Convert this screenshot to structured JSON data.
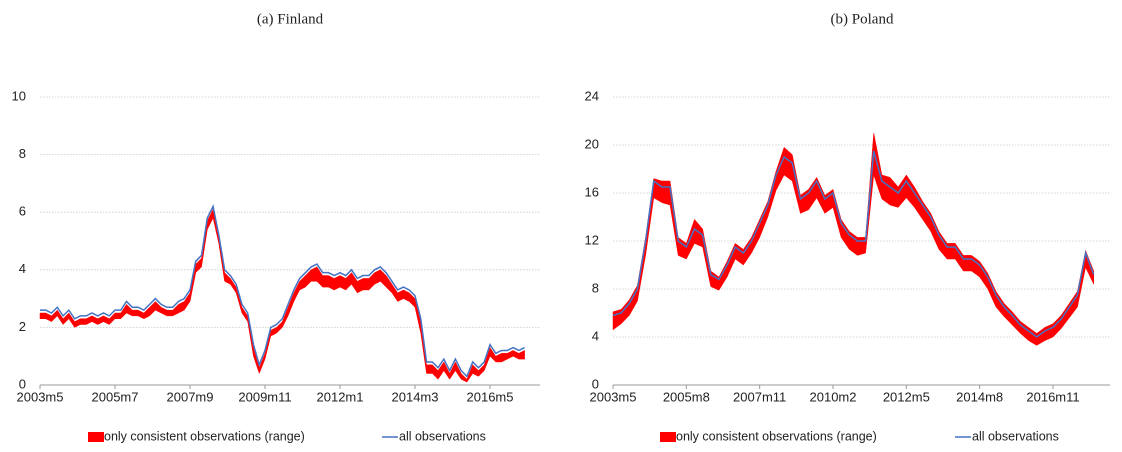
{
  "chart_data": [
    {
      "type": "line",
      "title": "(a) Finland",
      "categories": [
        "2003m5",
        null,
        null,
        null,
        null,
        null,
        null,
        null,
        null,
        null,
        null,
        null,
        null,
        "2005m7",
        null,
        null,
        null,
        null,
        null,
        null,
        null,
        null,
        null,
        null,
        null,
        null,
        "2007m9",
        null,
        null,
        null,
        null,
        null,
        null,
        null,
        null,
        null,
        null,
        null,
        null,
        "2009m11",
        null,
        null,
        null,
        null,
        null,
        null,
        null,
        null,
        null,
        null,
        null,
        null,
        "2012m1",
        null,
        null,
        null,
        null,
        null,
        null,
        null,
        null,
        null,
        null,
        null,
        null,
        "2014m3",
        null,
        null,
        null,
        null,
        null,
        null,
        null,
        null,
        null,
        null,
        null,
        null,
        "2016m5",
        null,
        null,
        null,
        null,
        null,
        null
      ],
      "series": [
        {
          "name": "only consistent observations (range)",
          "color": "#ff0000",
          "high": [
            2.5,
            2.5,
            2.4,
            2.6,
            2.3,
            2.5,
            2.2,
            2.3,
            2.3,
            2.4,
            2.3,
            2.4,
            2.3,
            2.5,
            2.5,
            2.8,
            2.6,
            2.6,
            2.5,
            2.7,
            2.9,
            2.7,
            2.6,
            2.6,
            2.8,
            2.9,
            3.2,
            4.2,
            4.4,
            5.7,
            6.1,
            5.1,
            3.9,
            3.7,
            3.4,
            2.7,
            2.4,
            1.3,
            0.6,
            1.1,
            1.9,
            2.0,
            2.2,
            2.7,
            3.2,
            3.6,
            3.8,
            4.0,
            4.1,
            3.8,
            3.8,
            3.7,
            3.8,
            3.7,
            3.9,
            3.6,
            3.7,
            3.7,
            3.9,
            4.0,
            3.8,
            3.5,
            3.2,
            3.3,
            3.2,
            3.0,
            2.2,
            0.7,
            0.7,
            0.5,
            0.8,
            0.4,
            0.8,
            0.4,
            0.2,
            0.7,
            0.5,
            0.7,
            1.3,
            1.0,
            1.1,
            1.1,
            1.2,
            1.1,
            1.2
          ],
          "low": [
            2.3,
            2.3,
            2.2,
            2.4,
            2.1,
            2.3,
            2.0,
            2.1,
            2.1,
            2.2,
            2.1,
            2.2,
            2.1,
            2.3,
            2.3,
            2.5,
            2.4,
            2.4,
            2.3,
            2.4,
            2.6,
            2.5,
            2.4,
            2.4,
            2.5,
            2.6,
            2.9,
            3.9,
            4.1,
            5.4,
            5.8,
            4.9,
            3.6,
            3.5,
            3.2,
            2.5,
            2.2,
            1.0,
            0.4,
            0.9,
            1.7,
            1.8,
            2.0,
            2.4,
            2.9,
            3.3,
            3.4,
            3.6,
            3.6,
            3.4,
            3.4,
            3.3,
            3.4,
            3.3,
            3.5,
            3.2,
            3.3,
            3.3,
            3.5,
            3.6,
            3.4,
            3.2,
            2.9,
            3.0,
            2.9,
            2.7,
            1.8,
            0.4,
            0.4,
            0.2,
            0.5,
            0.2,
            0.5,
            0.2,
            0.1,
            0.4,
            0.3,
            0.5,
            1.0,
            0.8,
            0.8,
            0.9,
            1.0,
            0.9,
            0.9
          ]
        },
        {
          "name": "all observations",
          "color": "#4472c4",
          "values": [
            2.6,
            2.6,
            2.5,
            2.7,
            2.4,
            2.6,
            2.3,
            2.4,
            2.4,
            2.5,
            2.4,
            2.5,
            2.4,
            2.6,
            2.6,
            2.9,
            2.7,
            2.7,
            2.6,
            2.8,
            3.0,
            2.8,
            2.7,
            2.7,
            2.9,
            3.0,
            3.3,
            4.3,
            4.5,
            5.8,
            6.2,
            5.2,
            4.0,
            3.8,
            3.5,
            2.8,
            2.5,
            1.4,
            0.7,
            1.2,
            2.0,
            2.1,
            2.3,
            2.8,
            3.3,
            3.7,
            3.9,
            4.1,
            4.2,
            3.9,
            3.9,
            3.8,
            3.9,
            3.8,
            4.0,
            3.7,
            3.8,
            3.8,
            4.0,
            4.1,
            3.9,
            3.6,
            3.3,
            3.4,
            3.3,
            3.1,
            2.3,
            0.8,
            0.8,
            0.6,
            0.9,
            0.5,
            0.9,
            0.5,
            0.3,
            0.8,
            0.6,
            0.8,
            1.4,
            1.1,
            1.2,
            1.2,
            1.3,
            1.2,
            1.3
          ]
        }
      ],
      "ylim": [
        0,
        10
      ],
      "yticks": [
        0,
        2,
        4,
        6,
        8,
        10
      ],
      "grid": true
    },
    {
      "type": "line",
      "title": "(b) Poland",
      "categories": [
        "2003m5",
        null,
        null,
        null,
        null,
        null,
        null,
        null,
        null,
        "2005m8",
        null,
        null,
        null,
        null,
        null,
        null,
        null,
        null,
        "2007m11",
        null,
        null,
        null,
        null,
        null,
        null,
        null,
        null,
        "2010m2",
        null,
        null,
        null,
        null,
        null,
        null,
        null,
        null,
        "2012m5",
        null,
        null,
        null,
        null,
        null,
        null,
        null,
        null,
        "2014m8",
        null,
        null,
        null,
        null,
        null,
        null,
        null,
        null,
        "2016m11",
        null,
        null,
        null,
        null,
        null
      ],
      "series": [
        {
          "name": "only consistent observations (range)",
          "color": "#ff0000",
          "high": [
            6.1,
            6.3,
            7.1,
            8.3,
            12.3,
            17.2,
            17.0,
            17.0,
            12.3,
            11.8,
            13.8,
            13.0,
            9.5,
            9.0,
            10.3,
            11.8,
            11.3,
            12.3,
            13.8,
            15.3,
            17.8,
            19.8,
            19.2,
            15.8,
            16.3,
            17.3,
            15.8,
            16.3,
            13.8,
            12.8,
            12.3,
            12.3,
            21.0,
            17.5,
            17.3,
            16.5,
            17.5,
            16.5,
            15.3,
            14.3,
            12.8,
            11.8,
            11.8,
            10.8,
            10.8,
            10.3,
            9.3,
            7.8,
            6.8,
            6.1,
            5.3,
            4.8,
            4.3,
            4.8,
            5.1,
            5.8,
            6.8,
            7.8,
            11.2,
            9.5
          ],
          "low": [
            4.6,
            5.1,
            5.8,
            7.0,
            10.8,
            15.6,
            15.2,
            15.0,
            10.8,
            10.5,
            11.8,
            11.5,
            8.2,
            7.9,
            9.0,
            10.5,
            10.0,
            11.0,
            12.3,
            14.0,
            16.2,
            17.5,
            17.0,
            14.3,
            14.6,
            15.6,
            14.3,
            14.8,
            12.3,
            11.3,
            10.8,
            11.0,
            17.5,
            15.5,
            15.0,
            14.8,
            15.6,
            14.8,
            13.8,
            12.8,
            11.3,
            10.5,
            10.5,
            9.5,
            9.5,
            9.0,
            8.0,
            6.5,
            5.7,
            5.0,
            4.3,
            3.7,
            3.3,
            3.7,
            4.0,
            4.7,
            5.6,
            6.5,
            9.8,
            8.4
          ]
        },
        {
          "name": "all observations",
          "color": "#4472c4",
          "values": [
            5.8,
            6.0,
            6.8,
            8.0,
            12.0,
            17.0,
            16.5,
            16.5,
            12.0,
            11.5,
            13.0,
            12.5,
            9.2,
            8.8,
            10.0,
            11.5,
            11.0,
            12.0,
            13.5,
            15.0,
            17.5,
            19.0,
            18.5,
            15.5,
            16.0,
            17.0,
            15.5,
            16.0,
            13.5,
            12.5,
            12.0,
            12.0,
            19.5,
            17.0,
            16.5,
            16.0,
            17.0,
            16.0,
            15.0,
            14.0,
            12.5,
            11.5,
            11.5,
            10.5,
            10.5,
            10.0,
            9.0,
            7.5,
            6.5,
            5.8,
            5.0,
            4.5,
            4.0,
            4.5,
            4.8,
            5.5,
            6.5,
            7.5,
            11.0,
            9.2
          ]
        }
      ],
      "ylim": [
        0,
        24
      ],
      "yticks": [
        0,
        4,
        8,
        12,
        16,
        20,
        24
      ],
      "grid": true
    }
  ]
}
